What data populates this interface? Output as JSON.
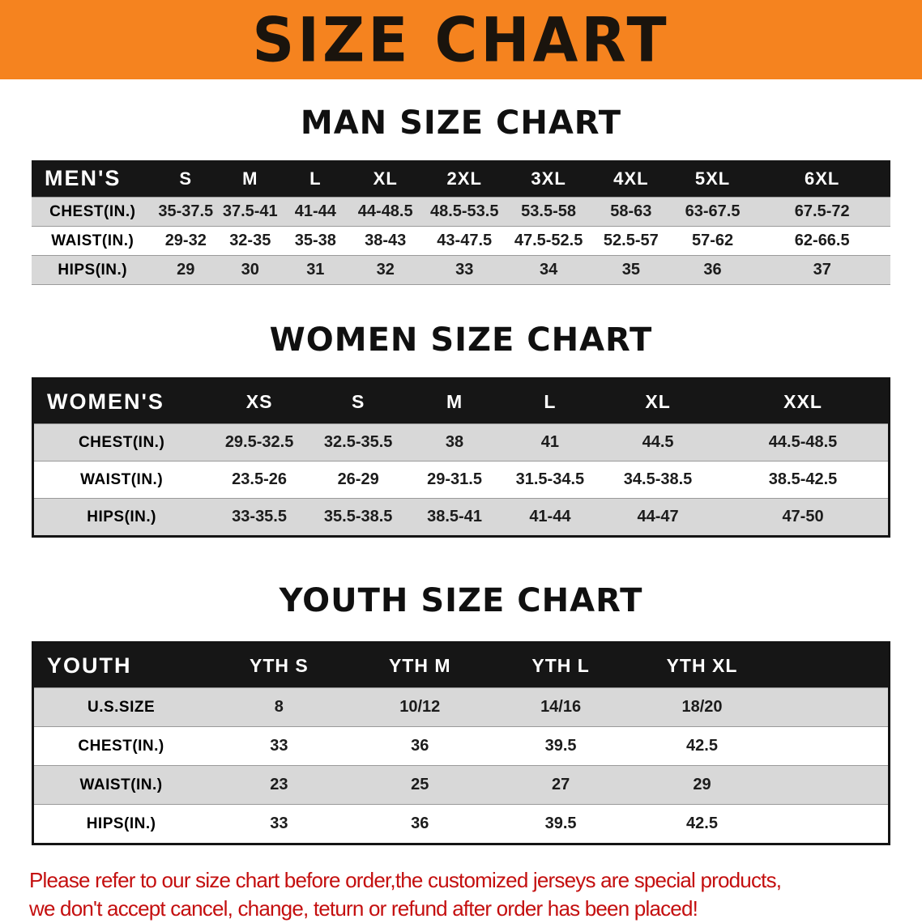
{
  "banner": {
    "title": "SIZE CHART",
    "bg_color": "#F5831F"
  },
  "sections": {
    "men": {
      "heading": "MAN SIZE CHART",
      "table": {
        "header": [
          "MEN'S",
          "S",
          "M",
          "L",
          "XL",
          "2XL",
          "3XL",
          "4XL",
          "5XL",
          "6XL"
        ],
        "rows": [
          {
            "label": "CHEST(IN.)",
            "values": [
              "35-37.5",
              "37.5-41",
              "41-44",
              "44-48.5",
              "48.5-53.5",
              "53.5-58",
              "58-63",
              "63-67.5",
              "67.5-72"
            ]
          },
          {
            "label": "WAIST(IN.)",
            "values": [
              "29-32",
              "32-35",
              "35-38",
              "38-43",
              "43-47.5",
              "47.5-52.5",
              "52.5-57",
              "57-62",
              "62-66.5"
            ]
          },
          {
            "label": "HIPS(IN.)",
            "values": [
              "29",
              "30",
              "31",
              "32",
              "33",
              "34",
              "35",
              "36",
              "37"
            ]
          }
        ]
      }
    },
    "women": {
      "heading": "WOMEN SIZE CHART",
      "table": {
        "header": [
          "WOMEN'S",
          "XS",
          "S",
          "M",
          "L",
          "XL",
          "XXL"
        ],
        "rows": [
          {
            "label": "CHEST(IN.)",
            "values": [
              "29.5-32.5",
              "32.5-35.5",
              "38",
              "41",
              "44.5",
              "44.5-48.5"
            ]
          },
          {
            "label": "WAIST(IN.)",
            "values": [
              "23.5-26",
              "26-29",
              "29-31.5",
              "31.5-34.5",
              "34.5-38.5",
              "38.5-42.5"
            ]
          },
          {
            "label": "HIPS(IN.)",
            "values": [
              "33-35.5",
              "35.5-38.5",
              "38.5-41",
              "41-44",
              "44-47",
              "47-50"
            ]
          }
        ]
      }
    },
    "youth": {
      "heading": "YOUTH SIZE CHART",
      "table": {
        "header": [
          "YOUTH",
          "YTH S",
          "YTH M",
          "YTH L",
          "YTH XL"
        ],
        "rows": [
          {
            "label": "U.S.SIZE",
            "values": [
              "8",
              "10/12",
              "14/16",
              "18/20"
            ]
          },
          {
            "label": "CHEST(IN.)",
            "values": [
              "33",
              "36",
              "39.5",
              "42.5"
            ]
          },
          {
            "label": "WAIST(IN.)",
            "values": [
              "23",
              "25",
              "27",
              "29"
            ]
          },
          {
            "label": "HIPS(IN.)",
            "values": [
              "33",
              "36",
              "39.5",
              "42.5"
            ]
          }
        ]
      }
    }
  },
  "disclaimer": {
    "color": "#C40F0F",
    "lines": [
      "Please refer to our size chart before order,the customized jerseys are special products,",
      "we don't accept cancel, change, teturn or refund after order has been placed!"
    ]
  }
}
